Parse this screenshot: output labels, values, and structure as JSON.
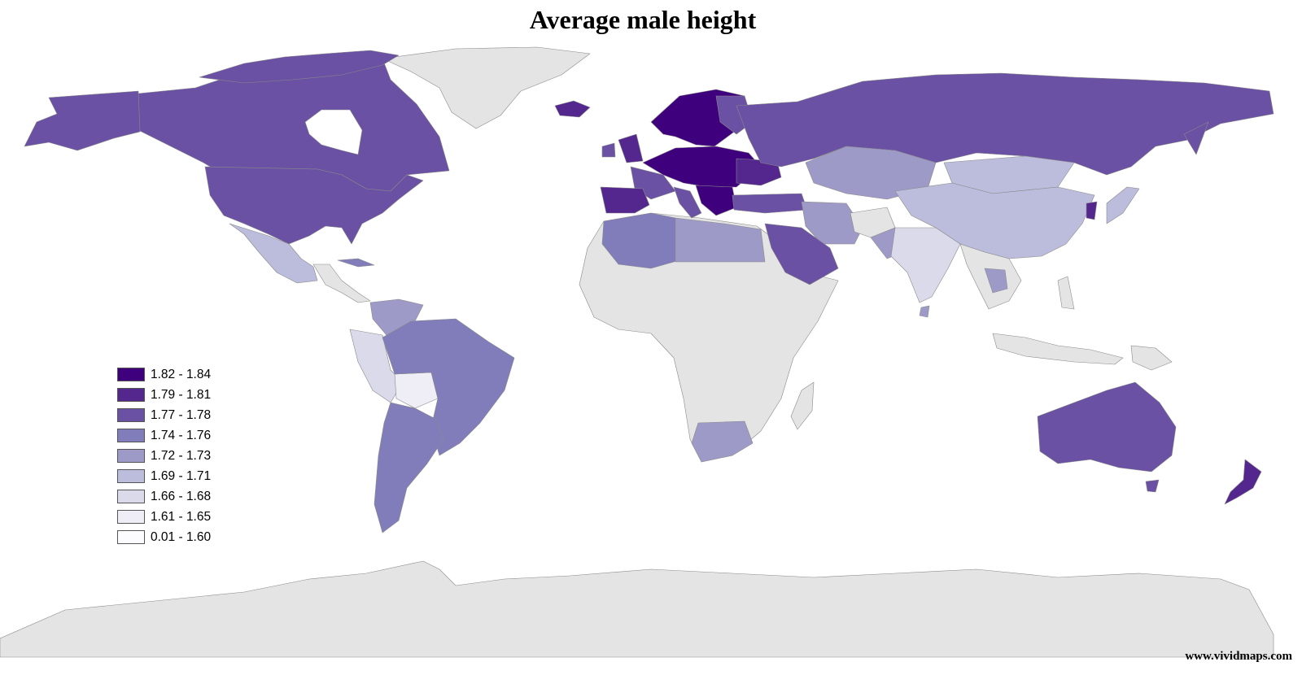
{
  "title": "Average male height",
  "credit": "www.vividmaps.com",
  "colors": {
    "no_data": "#e4e4e4",
    "ocean": "#ffffff",
    "border": "#8a8a8a"
  },
  "legend": [
    {
      "label": "1.82 - 1.84",
      "color": "#3f007d"
    },
    {
      "label": "1.79 - 1.81",
      "color": "#54278f"
    },
    {
      "label": "1.77 - 1.78",
      "color": "#6a51a3"
    },
    {
      "label": "1.74 - 1.76",
      "color": "#807dba"
    },
    {
      "label": "1.72 - 1.73",
      "color": "#9e9ac8"
    },
    {
      "label": "1.69 - 1.71",
      "color": "#bcbddc"
    },
    {
      "label": "1.66 - 1.68",
      "color": "#dadaeb"
    },
    {
      "label": "1.61 - 1.65",
      "color": "#efedf5"
    },
    {
      "label": "0.01 - 1.60",
      "color": "#fcfbfd"
    }
  ]
}
